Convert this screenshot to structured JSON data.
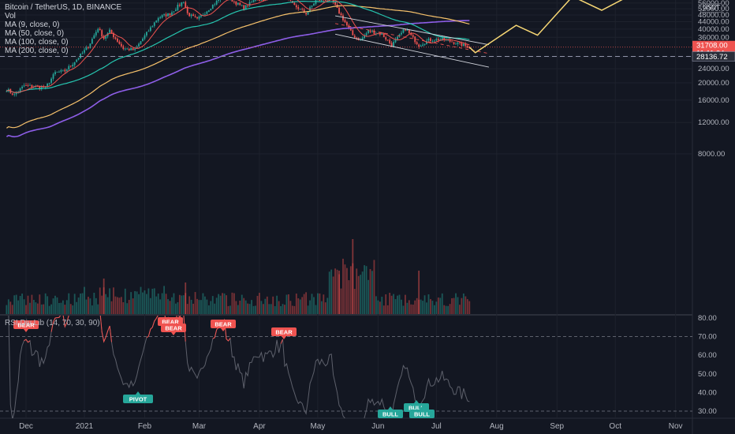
{
  "legend": {
    "symbol": "Bitcoin / TetherUS, 1D, BINANCE",
    "vol": "Vol",
    "ma9": "MA (9, close, 0)",
    "ma50": "MA (50, close, 0)",
    "ma100": "MA (100, close, 0)",
    "ma200": "MA (200, close, 0)"
  },
  "currency_badge": "USDT",
  "rsi_title": "RSI Div Lib (14, 70, 30, 90)",
  "price_axis": [
    "76000.00",
    "72000.00",
    "68000.00",
    "64000.00",
    "60000.00",
    "56000.00",
    "52000.00",
    "48000.00",
    "44000.00",
    "40000.00",
    "36000.00",
    "28000.00",
    "24000.00",
    "20000.00",
    "16000.00",
    "12000.00",
    "8000.00"
  ],
  "price_tags": {
    "last_price": "31708.00",
    "countdown": "11:11:34",
    "support_level": "28136.72"
  },
  "rsi_axis": [
    "80.00",
    "70.00",
    "60.00",
    "50.00",
    "40.00",
    "30.00"
  ],
  "time_axis": [
    "Dec",
    "2021",
    "Feb",
    "Mar",
    "Apr",
    "May",
    "Jun",
    "Jul",
    "Aug",
    "Sep",
    "Oct",
    "Nov"
  ],
  "signals": {
    "bear": [
      "BEAR",
      "BEAR",
      "BEAR",
      "BEAR",
      "BEAR"
    ],
    "bull": [
      "BULL",
      "BULL",
      "BULL"
    ],
    "pivot": [
      "PIVOT"
    ]
  },
  "colors": {
    "background": "#131722",
    "up": "#26a69a",
    "down": "#ef5350",
    "ma9": "#ef5350",
    "ma50": "#26c6b0",
    "ma100": "#f7c26c",
    "ma200": "#8e5ee8",
    "forecast": "#f7d774",
    "rsi_line": "#5d606b",
    "grid": "#1e222d"
  },
  "chart_data": {
    "type": "candlestick",
    "series_note": "",
    "price_scale": "log",
    "ylim": [
      8000,
      76000
    ],
    "rsi_overbought": 70,
    "rsi_oversold": 30,
    "price_levels": {
      "last": 31708.0,
      "support": 28136.72
    },
    "forecast_path": [
      {
        "date": "2021-07-18",
        "price": 31700
      },
      {
        "date": "2021-07-21",
        "price": 29500
      },
      {
        "date": "2021-08-11",
        "price": 42000
      },
      {
        "date": "2021-08-22",
        "price": 37000
      },
      {
        "date": "2021-09-09",
        "price": 61000
      },
      {
        "date": "2021-09-24",
        "price": 51000
      },
      {
        "date": "2021-10-16",
        "price": 68000
      }
    ]
  }
}
